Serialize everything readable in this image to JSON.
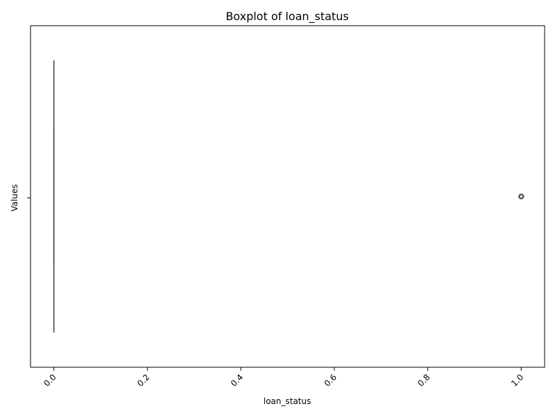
{
  "chart_data": {
    "type": "boxplot",
    "title": "Boxplot of loan_status",
    "xlabel": "loan_status",
    "ylabel": "Values",
    "orientation": "horizontal",
    "xlim": [
      -0.05,
      1.05
    ],
    "xticks": [
      0.0,
      0.2,
      0.4,
      0.6,
      0.8,
      1.0
    ],
    "xtick_labels": [
      "0.0",
      "0.2",
      "0.4",
      "0.6",
      "0.8",
      "1.0"
    ],
    "xtick_rotation_deg": 45,
    "grid": false,
    "legend": "none",
    "box": {
      "min": 0,
      "q1": 0,
      "median": 0,
      "q3": 0,
      "max": 0,
      "outliers": [
        1
      ]
    },
    "colors": {
      "box_edge": "#3f3f3f",
      "outlier_edge": "#3f3f3f"
    }
  }
}
